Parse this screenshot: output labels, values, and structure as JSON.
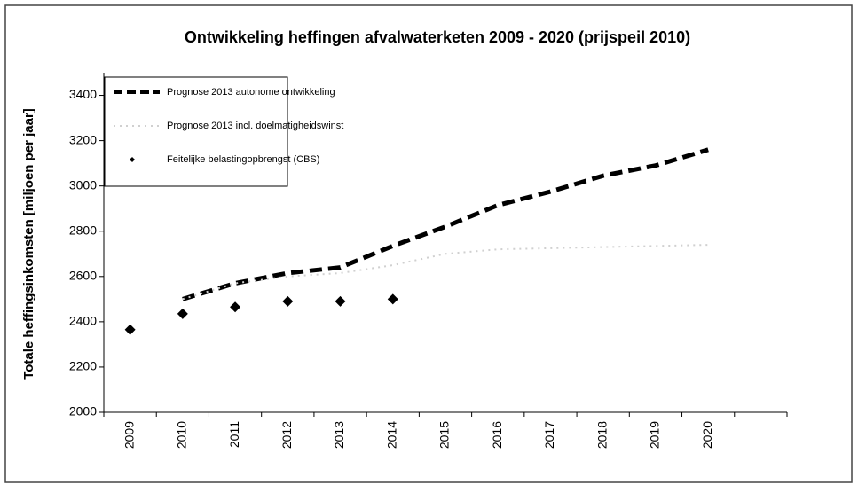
{
  "chart_data": {
    "type": "line",
    "title": "Ontwikkeling heffingen afvalwaterketen 2009 - 2020 (prijspeil 2010)",
    "y_label": "Totale heffingsinkomsten [miljoen per jaar]",
    "categories": [
      "2009",
      "2010",
      "2011",
      "2012",
      "2013",
      "2014",
      "2015",
      "2016",
      "2017",
      "2018",
      "2019",
      "2020",
      null
    ],
    "series": [
      {
        "name": "Prognose 2013 autonome ontwikkeling",
        "color": "#000000",
        "style": "dashed",
        "values": [
          null,
          2500,
          2570,
          2615,
          2640,
          2735,
          2820,
          2915,
          2975,
          3045,
          3090,
          3160,
          null
        ]
      },
      {
        "name": "Prognose 2013 incl. doelmatigheidswinst",
        "color": "#d0d0d0",
        "style": "dotted",
        "values": [
          null,
          2500,
          2570,
          2600,
          2615,
          2650,
          2700,
          2720,
          2725,
          2730,
          2735,
          2740,
          null
        ]
      },
      {
        "name": "Feitelijke belastingopbrengst (CBS)",
        "color": "#000000",
        "style": "markers",
        "values": [
          2365,
          2435,
          2465,
          2490,
          2490,
          2500,
          null,
          null,
          null,
          null,
          null,
          null,
          null
        ]
      }
    ],
    "ylim": [
      2000,
      3500
    ],
    "yticks": [
      2000,
      2200,
      2400,
      2600,
      2800,
      3000,
      3200,
      3400
    ],
    "grid": false,
    "legend": "top-left"
  }
}
